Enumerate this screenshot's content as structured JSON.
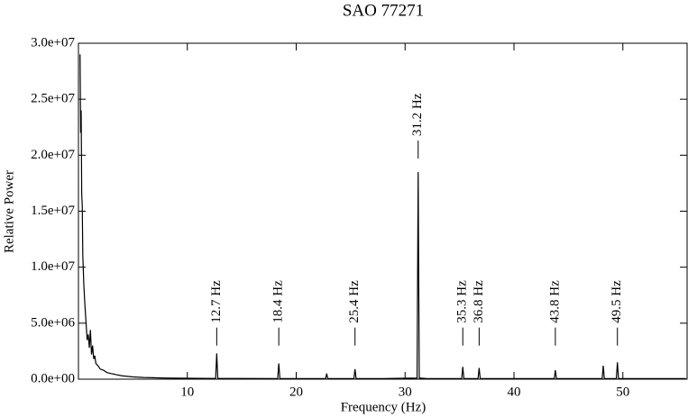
{
  "chart_data": {
    "type": "line",
    "title": "SAO 77271",
    "xlabel": "Frequency (Hz)",
    "ylabel": "Relative Power",
    "xlim": [
      0,
      55.9
    ],
    "xticks": [
      10,
      20,
      30,
      40,
      50
    ],
    "ylim": [
      0,
      30000000
    ],
    "yticks": [
      {
        "value": 0,
        "label": "0.0e+00"
      },
      {
        "value": 5000000,
        "label": "5.0e+06"
      },
      {
        "value": 10000000,
        "label": "1.0e+07"
      },
      {
        "value": 15000000,
        "label": "1.5e+07"
      },
      {
        "value": 20000000,
        "label": "2.0e+07"
      },
      {
        "value": 25000000,
        "label": "2.5e+07"
      },
      {
        "value": 30000000,
        "label": "3.0e+07"
      }
    ],
    "series": [
      {
        "color": "#000000",
        "x": [
          0.15,
          0.2,
          0.25,
          0.3,
          0.35,
          0.4,
          0.5,
          0.6,
          0.7,
          0.8,
          0.9,
          1.0,
          1.1,
          1.2,
          1.3,
          1.4,
          1.5,
          1.6,
          1.8,
          2.0,
          2.3,
          2.6,
          3.0,
          3.5,
          4.0,
          5.0,
          6.0,
          8.0,
          10.0,
          12.6,
          12.7,
          12.8,
          15.0,
          18.3,
          18.4,
          18.5,
          22.7,
          22.8,
          22.9,
          25.3,
          25.4,
          25.5,
          28.0,
          31.1,
          31.2,
          31.3,
          32.0,
          35.2,
          35.3,
          35.4,
          36.7,
          36.8,
          36.9,
          40.0,
          43.7,
          43.8,
          43.9,
          48.1,
          48.2,
          48.3,
          49.4,
          49.5,
          49.6,
          52.0,
          55.8
        ],
        "values": [
          29000000,
          22000000,
          24000000,
          16500000,
          15500000,
          11000000,
          8300000,
          6500000,
          5000000,
          3500000,
          4000000,
          2800000,
          4400000,
          2200000,
          3000000,
          1800000,
          2100000,
          1400000,
          1200000,
          900000,
          800000,
          600000,
          500000,
          400000,
          300000,
          200000,
          150000,
          100000,
          80000,
          60000,
          2300000,
          60000,
          60000,
          50000,
          1400000,
          50000,
          50000,
          500000,
          50000,
          50000,
          900000,
          50000,
          50000,
          100000,
          18500000,
          100000,
          50000,
          50000,
          1100000,
          50000,
          50000,
          1000000,
          50000,
          50000,
          50000,
          800000,
          50000,
          50000,
          1200000,
          50000,
          50000,
          1500000,
          50000,
          50000,
          50000
        ]
      }
    ],
    "annotations": [
      {
        "text": "12.7 Hz",
        "x": 12.7,
        "y": 3000000
      },
      {
        "text": "18.4 Hz",
        "x": 18.4,
        "y": 3000000
      },
      {
        "text": "25.4 Hz",
        "x": 25.4,
        "y": 3000000
      },
      {
        "text": "31.2 Hz",
        "x": 31.2,
        "y": 19700000
      },
      {
        "text": "35.3 Hz",
        "x": 35.3,
        "y": 3000000
      },
      {
        "text": "36.8 Hz",
        "x": 36.8,
        "y": 3000000
      },
      {
        "text": "43.8 Hz",
        "x": 43.8,
        "y": 3000000
      },
      {
        "text": "49.5 Hz",
        "x": 49.5,
        "y": 3000000
      }
    ]
  }
}
